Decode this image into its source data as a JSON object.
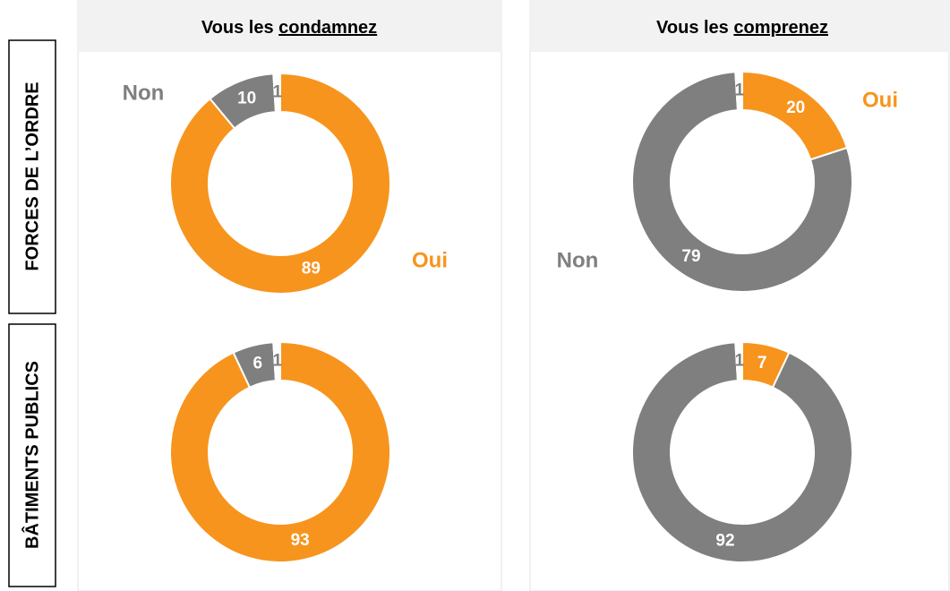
{
  "column_headers": [
    {
      "prefix": "Vous les",
      "emphasis": "condamnez"
    },
    {
      "prefix": "Vous les",
      "emphasis": "comprenez"
    }
  ],
  "row_labels": [
    "FORCES DE L’ORDRE",
    "BÂTIMENTS PUBLICS"
  ],
  "chart_data": [
    {
      "type": "donut",
      "categories": [
        "Oui",
        "Non",
        null
      ],
      "values": [
        89,
        10,
        1
      ],
      "colors": [
        "#f7941d",
        "#7f7f7f",
        "#ffffff"
      ]
    },
    {
      "type": "donut",
      "categories": [
        "Oui",
        "Non",
        null
      ],
      "values": [
        20,
        79,
        1
      ],
      "colors": [
        "#f7941d",
        "#7f7f7f",
        "#ffffff"
      ]
    },
    {
      "type": "donut",
      "categories": [
        null,
        null,
        null
      ],
      "values": [
        93,
        6,
        1
      ],
      "colors": [
        "#f7941d",
        "#7f7f7f",
        "#ffffff"
      ]
    },
    {
      "type": "donut",
      "categories": [
        null,
        null,
        null
      ],
      "values": [
        7,
        92,
        1
      ],
      "colors": [
        "#f7941d",
        "#7f7f7f",
        "#ffffff"
      ]
    }
  ]
}
